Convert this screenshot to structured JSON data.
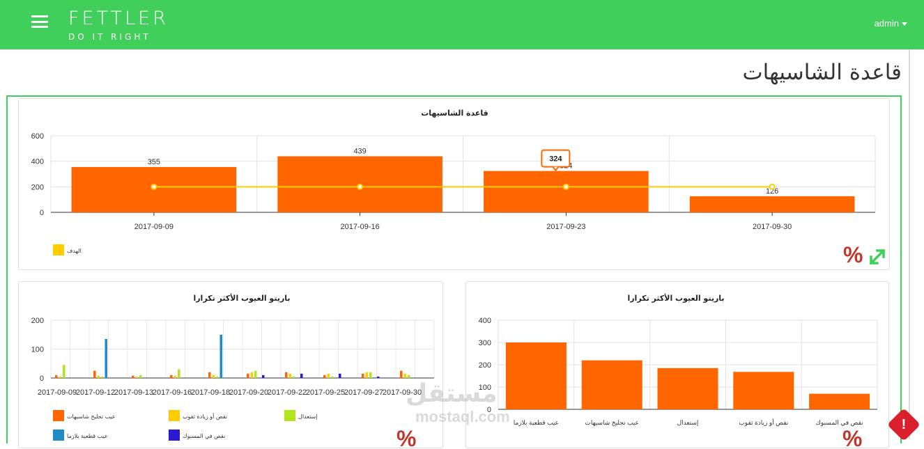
{
  "header": {
    "logo_main": "FETTLER",
    "logo_sub": "DO IT RIGHT",
    "user": "admin"
  },
  "page_title": "قاعدة الشاسيهات",
  "colors": {
    "accent": "#3fcf5a",
    "bar": "#ff6600",
    "target": "#ffcc00",
    "alert": "#d9202c"
  },
  "icons": {
    "menu": "hamburger-icon",
    "percent": "percent-icon",
    "expand": "expand-icon",
    "alert": "exclamation-icon"
  },
  "percent_symbol": "%",
  "alert_symbol": "!",
  "watermark": {
    "arabic": "مستقل",
    "latin": "mostaql.com"
  },
  "chart_data": [
    {
      "type": "bar",
      "title": "قاعدة الشاسيهات",
      "categories": [
        "2017-09-09",
        "2017-09-16",
        "2017-09-23",
        "2017-09-30"
      ],
      "series": [
        {
          "name": "",
          "type": "bar",
          "values": [
            355,
            439,
            324,
            126
          ]
        },
        {
          "name": "الهدف",
          "type": "line",
          "values": [
            200,
            200,
            200,
            200
          ]
        }
      ],
      "ylim": [
        0,
        600
      ],
      "yticks": [
        0,
        200,
        400,
        600
      ],
      "tooltip": "324",
      "legend": "bottom-left",
      "grid": true
    },
    {
      "type": "bar",
      "title": "باريتو العيوب الأكثر تكرارا",
      "categories": [
        "2017-09-09",
        "2017-09-12",
        "2017-09-13",
        "2017-09-16",
        "2017-09-18",
        "2017-09-20",
        "2017-09-22",
        "2017-09-25",
        "2017-09-27",
        "2017-09-30"
      ],
      "series": [
        {
          "name": "عيب تجليخ شاسيهات",
          "values": [
            10,
            25,
            8,
            10,
            20,
            15,
            20,
            10,
            15,
            25
          ]
        },
        {
          "name": "نقص أو زيادة ثقوب",
          "values": [
            5,
            8,
            5,
            8,
            10,
            20,
            15,
            15,
            20,
            15
          ]
        },
        {
          "name": "إستعدال",
          "values": [
            45,
            5,
            10,
            30,
            5,
            25,
            5,
            5,
            20,
            10
          ]
        },
        {
          "name": "عيب قطعية بلازما",
          "values": [
            0,
            135,
            0,
            0,
            150,
            0,
            0,
            0,
            0,
            0
          ]
        },
        {
          "name": "نقص في المسبوك",
          "values": [
            0,
            0,
            0,
            0,
            0,
            10,
            15,
            15,
            5,
            0
          ]
        }
      ],
      "ylim": [
        0,
        200
      ],
      "yticks": [
        0,
        100,
        200
      ],
      "legend": "bottom",
      "grid": true
    },
    {
      "type": "bar",
      "title": "باريتو العيوب الأكثر تكرارا",
      "categories": [
        "عيب قطعية بلازما",
        "عيب تجليخ شاسيهات",
        "إستعدال",
        "نقص أو زيادة ثقوب",
        "نقص في المسبوك"
      ],
      "values": [
        300,
        220,
        185,
        168,
        70
      ],
      "ylim": [
        0,
        400
      ],
      "yticks": [
        0,
        100,
        200,
        300,
        400
      ],
      "grid": true
    }
  ]
}
